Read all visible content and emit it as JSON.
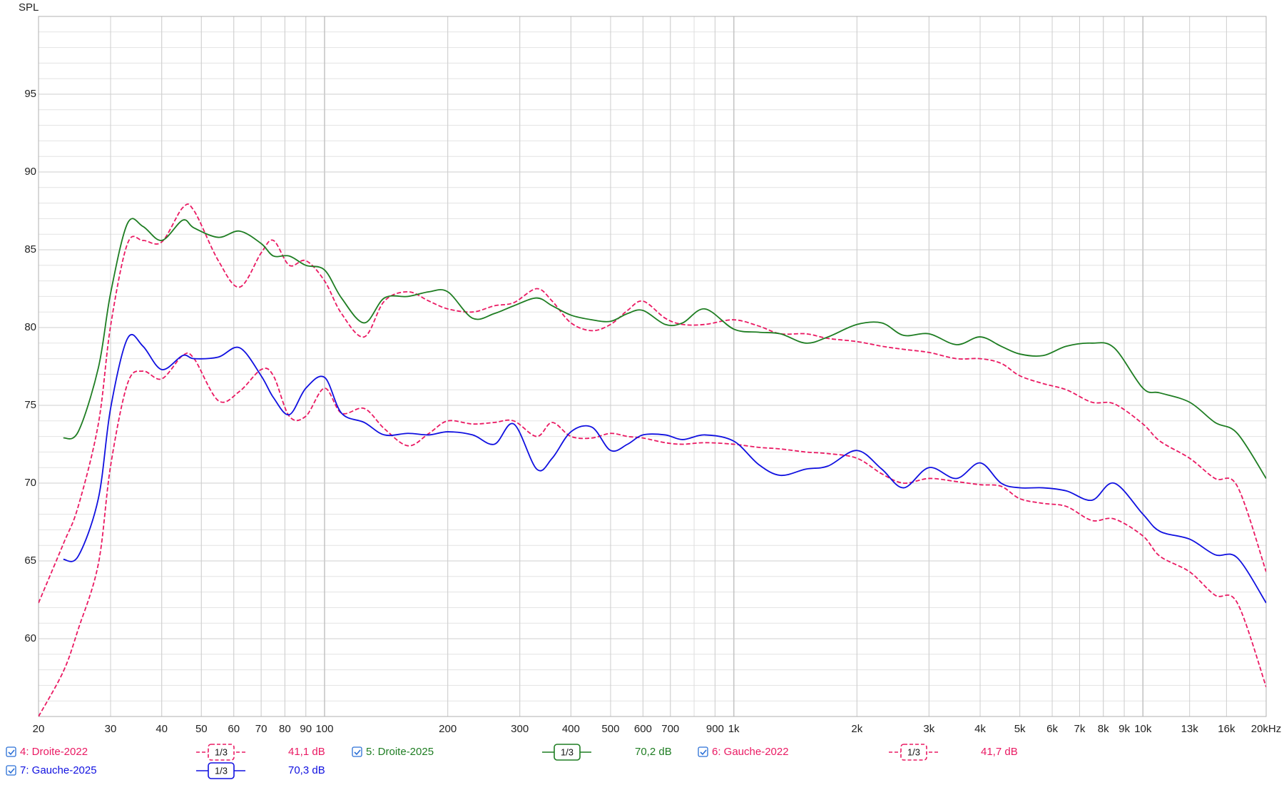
{
  "chart_data": {
    "type": "line",
    "y_label": "SPL",
    "x_scale": "log",
    "grid": true,
    "xlim": [
      20,
      20000
    ],
    "ylim": [
      55,
      100
    ],
    "yticks": [
      60,
      65,
      70,
      75,
      80,
      85,
      90,
      95
    ],
    "xticks": [
      20,
      30,
      40,
      50,
      60,
      70,
      80,
      90,
      100,
      200,
      300,
      400,
      500,
      600,
      700,
      900,
      {
        "value": 1000,
        "label": "1k"
      },
      {
        "value": 2000,
        "label": "2k"
      },
      {
        "value": 3000,
        "label": "3k"
      },
      {
        "value": 4000,
        "label": "4k"
      },
      {
        "value": 5000,
        "label": "5k"
      },
      {
        "value": 6000,
        "label": "6k"
      },
      {
        "value": 7000,
        "label": "7k"
      },
      {
        "value": 8000,
        "label": "8k"
      },
      {
        "value": 9000,
        "label": "9k"
      },
      {
        "value": 10000,
        "label": "10k"
      },
      {
        "value": 13000,
        "label": "13k"
      },
      {
        "value": 16000,
        "label": "16k"
      },
      {
        "value": 20000,
        "label": "20kHz"
      }
    ],
    "x": [
      20,
      23,
      25,
      28,
      30,
      33,
      36,
      40,
      45,
      48,
      55,
      62,
      70,
      75,
      82,
      90,
      100,
      110,
      125,
      140,
      160,
      180,
      200,
      230,
      260,
      290,
      330,
      360,
      400,
      450,
      500,
      550,
      600,
      680,
      750,
      850,
      1000,
      1150,
      1300,
      1500,
      1700,
      2000,
      2300,
      2600,
      3000,
      3500,
      4000,
      4500,
      5000,
      5700,
      6500,
      7500,
      8500,
      10000,
      11000,
      13000,
      15000,
      17000,
      20000
    ],
    "series": [
      {
        "name": "4: Droite-2022",
        "color": "#ea1a63",
        "dash": true,
        "smoothing": "1/3",
        "level": "41,1 dB",
        "values": [
          62.3,
          66.1,
          68.5,
          73.8,
          80.1,
          85.4,
          85.6,
          85.5,
          87.7,
          87.5,
          84.3,
          82.6,
          84.8,
          85.6,
          84.0,
          84.3,
          83.0,
          80.9,
          79.4,
          81.7,
          82.3,
          81.7,
          81.2,
          81.0,
          81.4,
          81.6,
          82.5,
          81.7,
          80.3,
          79.8,
          80.2,
          81.1,
          81.7,
          80.6,
          80.2,
          80.2,
          80.5,
          80.1,
          79.6,
          79.6,
          79.3,
          79.1,
          78.8,
          78.6,
          78.4,
          78.0,
          78.0,
          77.7,
          76.9,
          76.4,
          76.0,
          75.2,
          75.1,
          73.8,
          72.7,
          71.6,
          70.3,
          69.8,
          64.3
        ]
      },
      {
        "name": "5: Droite-2025",
        "color": "#1e7d22",
        "dash": false,
        "smoothing": "1/3",
        "level": "70,2 dB",
        "values": [
          null,
          72.9,
          73.3,
          77.4,
          82.2,
          86.7,
          86.5,
          85.6,
          86.9,
          86.4,
          85.8,
          86.2,
          85.4,
          84.6,
          84.6,
          84.0,
          83.7,
          81.9,
          80.3,
          81.9,
          82.0,
          82.3,
          82.3,
          80.6,
          80.9,
          81.4,
          81.9,
          81.4,
          80.8,
          80.5,
          80.4,
          80.9,
          81.1,
          80.2,
          80.3,
          81.2,
          79.9,
          79.7,
          79.6,
          79.0,
          79.4,
          80.2,
          80.3,
          79.5,
          79.6,
          78.9,
          79.4,
          78.8,
          78.3,
          78.2,
          78.8,
          79.0,
          78.7,
          76.1,
          75.8,
          75.2,
          73.9,
          73.2,
          70.3
        ]
      },
      {
        "name": "6: Gauche-2022",
        "color": "#ea1a63",
        "dash": true,
        "smoothing": "1/3",
        "level": "41,7 dB",
        "values": [
          55.0,
          57.9,
          60.6,
          64.8,
          71.1,
          76.4,
          77.2,
          76.7,
          78.2,
          78.0,
          75.3,
          75.9,
          77.3,
          76.9,
          74.3,
          74.3,
          76.1,
          74.5,
          74.8,
          73.5,
          72.4,
          73.2,
          74.0,
          73.8,
          73.9,
          74.0,
          73.0,
          73.9,
          73.0,
          72.9,
          73.2,
          73.0,
          72.9,
          72.6,
          72.5,
          72.6,
          72.5,
          72.3,
          72.2,
          72.0,
          71.9,
          71.6,
          70.6,
          70.0,
          70.3,
          70.1,
          69.9,
          69.8,
          69.0,
          68.7,
          68.5,
          67.6,
          67.7,
          66.6,
          65.3,
          64.3,
          62.8,
          62.3,
          56.9
        ]
      },
      {
        "name": "7: Gauche-2025",
        "color": "#1010e0",
        "dash": false,
        "smoothing": "1/3",
        "level": "70,3 dB",
        "values": [
          null,
          65.1,
          65.3,
          69.0,
          74.8,
          79.3,
          78.8,
          77.3,
          78.2,
          78.0,
          78.1,
          78.7,
          76.9,
          75.5,
          74.4,
          76.1,
          76.8,
          74.5,
          73.9,
          73.1,
          73.2,
          73.1,
          73.3,
          73.1,
          72.5,
          73.8,
          70.9,
          71.6,
          73.3,
          73.6,
          72.1,
          72.5,
          73.1,
          73.1,
          72.8,
          73.1,
          72.7,
          71.2,
          70.5,
          70.9,
          71.1,
          72.1,
          70.9,
          69.7,
          71.0,
          70.3,
          71.3,
          70.0,
          69.7,
          69.7,
          69.5,
          68.9,
          70.0,
          68.0,
          66.9,
          66.4,
          65.4,
          65.2,
          62.3
        ]
      }
    ]
  }
}
